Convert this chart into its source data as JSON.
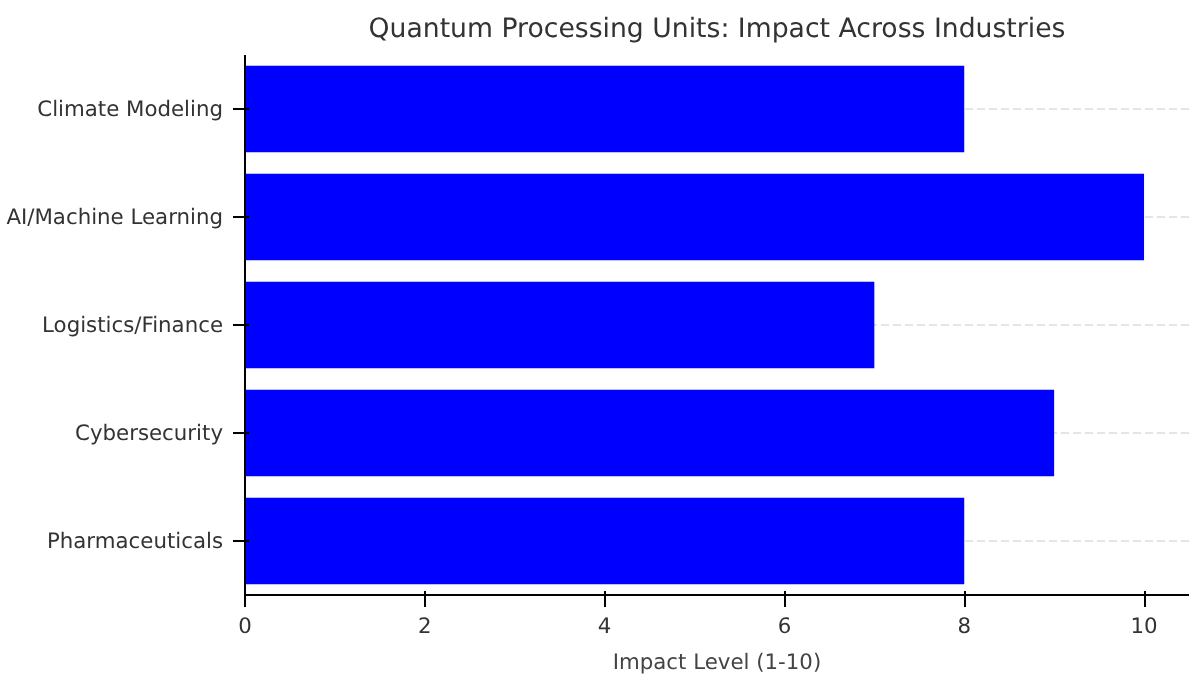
{
  "chart_data": {
    "type": "bar",
    "orientation": "horizontal",
    "title": "Quantum Processing Units: Impact Across Industries",
    "xlabel": "Impact Level (1-10)",
    "categories": [
      "Climate Modeling",
      "AI/Machine Learning",
      "Logistics/Finance",
      "Cybersecurity",
      "Pharmaceuticals"
    ],
    "values": [
      8,
      10,
      7,
      9,
      8
    ],
    "color": "#0000ff",
    "xlim": [
      0,
      10.5
    ],
    "xticks": [
      0,
      2,
      4,
      6,
      8,
      10
    ],
    "grid": "y"
  }
}
